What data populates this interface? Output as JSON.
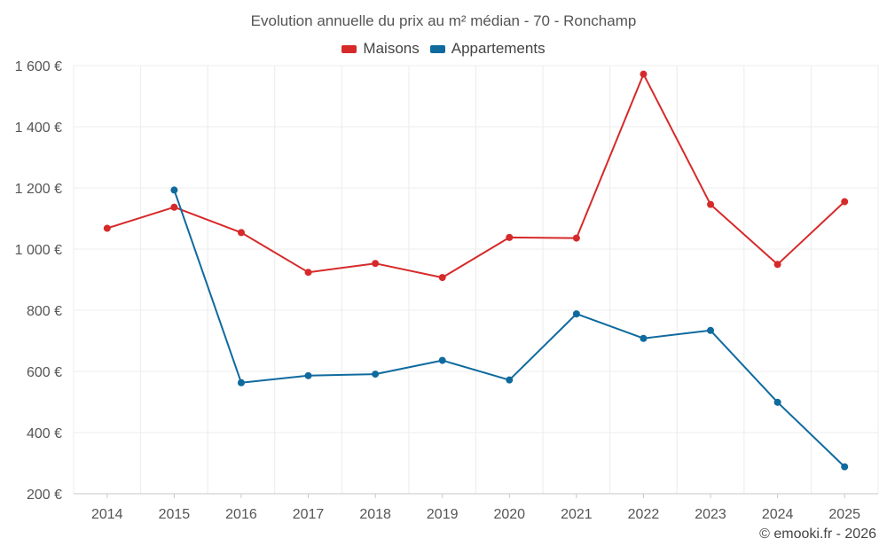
{
  "chart_data": {
    "type": "line",
    "title": "Evolution annuelle du prix au m² médian - 70 - Ronchamp",
    "categories": [
      "2014",
      "2015",
      "2016",
      "2017",
      "2018",
      "2019",
      "2020",
      "2021",
      "2022",
      "2023",
      "2024",
      "2025"
    ],
    "series": [
      {
        "name": "Maisons",
        "color": "#d62a2a",
        "values": [
          1068,
          1137,
          1054,
          924,
          953,
          907,
          1038,
          1036,
          1572,
          1146,
          950,
          1155
        ]
      },
      {
        "name": "Appartements",
        "color": "#0f6a9e",
        "values": [
          null,
          1193,
          563,
          586,
          591,
          636,
          572,
          788,
          708,
          734,
          499,
          288
        ]
      }
    ],
    "yticks": [
      "200 €",
      "400 €",
      "600 €",
      "800 €",
      "1 000 €",
      "1 200 €",
      "1 400 €",
      "1 600 €"
    ],
    "ytick_values": [
      200,
      400,
      600,
      800,
      1000,
      1200,
      1400,
      1600
    ],
    "ylim": [
      200,
      1600
    ],
    "xlabel": "",
    "ylabel": "",
    "grid": true,
    "legend_position": "top-center"
  },
  "credit": "© emooki.fr - 2026"
}
